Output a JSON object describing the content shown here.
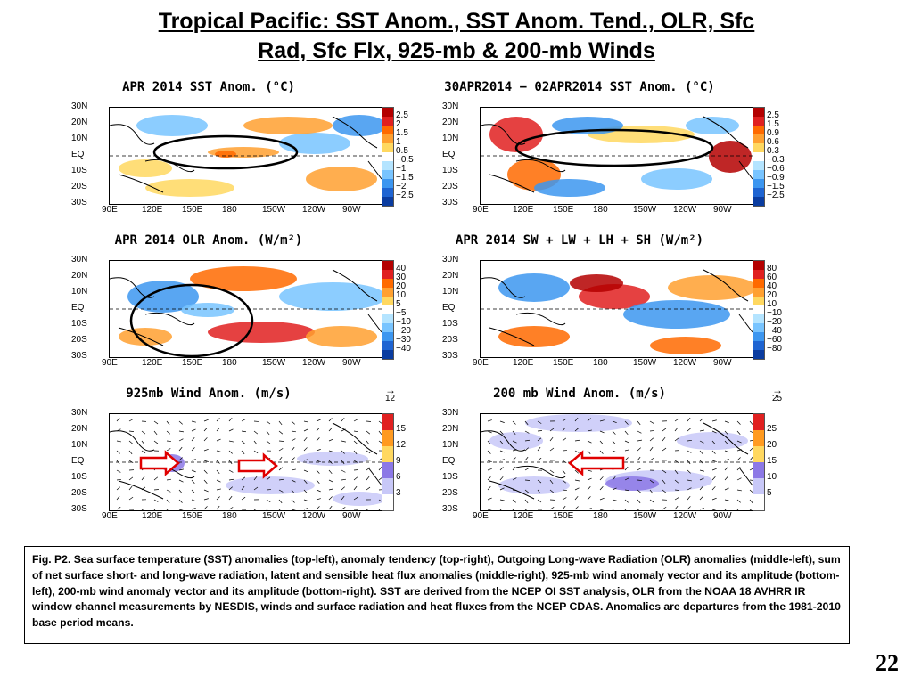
{
  "slide": {
    "title_line1": "Tropical Pacific: SST Anom., SST Anom. Tend., OLR, Sfc",
    "title_line2": "Rad, Sfc Flx, 925-mb & 200-mb Winds",
    "page_number": "22",
    "caption": "Fig. P2. Sea surface temperature (SST) anomalies (top-left), anomaly tendency (top-right), Outgoing Long-wave Radiation (OLR) anomalies (middle-left), sum of net surface short- and long-wave radiation, latent and sensible heat flux anomalies (middle-right), 925-mb wind anomaly vector and its amplitude (bottom-left), 200-mb wind anomaly vector and its amplitude  (bottom-right). SST are derived from the NCEP OI SST analysis, OLR from the NOAA 18 AVHRR IR window channel measurements by NESDIS, winds and surface radiation and heat fluxes from the NCEP CDAS. Anomalies are  departures from the 1981-2010 base period means."
  },
  "axes": {
    "lat_labels": [
      "30N",
      "20N",
      "10N",
      "EQ",
      "10S",
      "20S",
      "30S"
    ],
    "lon_labels": [
      "90E",
      "120E",
      "150E",
      "180",
      "150W",
      "120W",
      "90W"
    ]
  },
  "panels": [
    {
      "id": "sst",
      "title": "APR 2014 SST Anom. (°C)",
      "colorbar_labels": [
        "2.5",
        "2",
        "1.5",
        "1",
        "0.5",
        "−0.5",
        "−1",
        "−1.5",
        "−2",
        "−2.5"
      ],
      "colors": [
        "#b40000",
        "#e02020",
        "#ff6a00",
        "#ffa030",
        "#ffd860",
        "#ffffff",
        "#b4e4ff",
        "#78c4ff",
        "#3c96f0",
        "#1e64d2",
        "#0a3ca0"
      ]
    },
    {
      "id": "sst-tend",
      "title": "30APR2014 − 02APR2014 SST Anom. (°C)",
      "colorbar_labels": [
        "2.5",
        "1.5",
        "0.9",
        "0.6",
        "0.3",
        "−0.3",
        "−0.6",
        "−0.9",
        "−1.5",
        "−2.5"
      ],
      "colors": [
        "#b40000",
        "#e02020",
        "#ff6a00",
        "#ffa030",
        "#ffd860",
        "#ffffff",
        "#b4e4ff",
        "#78c4ff",
        "#3c96f0",
        "#1e64d2",
        "#0a3ca0"
      ]
    },
    {
      "id": "olr",
      "title": "APR 2014 OLR Anom. (W/m²)",
      "colorbar_labels": [
        "40",
        "30",
        "20",
        "10",
        "5",
        "−5",
        "−10",
        "−20",
        "−30",
        "−40"
      ],
      "colors": [
        "#b40000",
        "#e02020",
        "#ff6a00",
        "#ffa030",
        "#ffd860",
        "#ffffff",
        "#b4e4ff",
        "#78c4ff",
        "#3c96f0",
        "#1e64d2",
        "#0a3ca0"
      ]
    },
    {
      "id": "sfc-flux",
      "title": "APR 2014 SW + LW + LH + SH (W/m²)",
      "colorbar_labels": [
        "80",
        "60",
        "40",
        "20",
        "10",
        "−10",
        "−20",
        "−40",
        "−60",
        "−80"
      ],
      "colors": [
        "#b40000",
        "#e02020",
        "#ff6a00",
        "#ffa030",
        "#ffd860",
        "#ffffff",
        "#b4e4ff",
        "#78c4ff",
        "#3c96f0",
        "#1e64d2",
        "#0a3ca0"
      ]
    },
    {
      "id": "wind925",
      "title": "925mb Wind Anom. (m/s)",
      "ref_vector": "12",
      "colorbar_labels": [
        "15",
        "12",
        "9",
        "6",
        "3"
      ],
      "colors": [
        "#e02020",
        "#ff9a20",
        "#ffd860",
        "#8c78e6",
        "#c8c8f8",
        "#ffffff"
      ]
    },
    {
      "id": "wind200",
      "title": "200 mb Wind Anom. (m/s)",
      "ref_vector": "25",
      "colorbar_labels": [
        "25",
        "20",
        "15",
        "10",
        "5"
      ],
      "colors": [
        "#e02020",
        "#ff9a20",
        "#ffd860",
        "#8c78e6",
        "#c8c8f8",
        "#ffffff"
      ]
    }
  ]
}
